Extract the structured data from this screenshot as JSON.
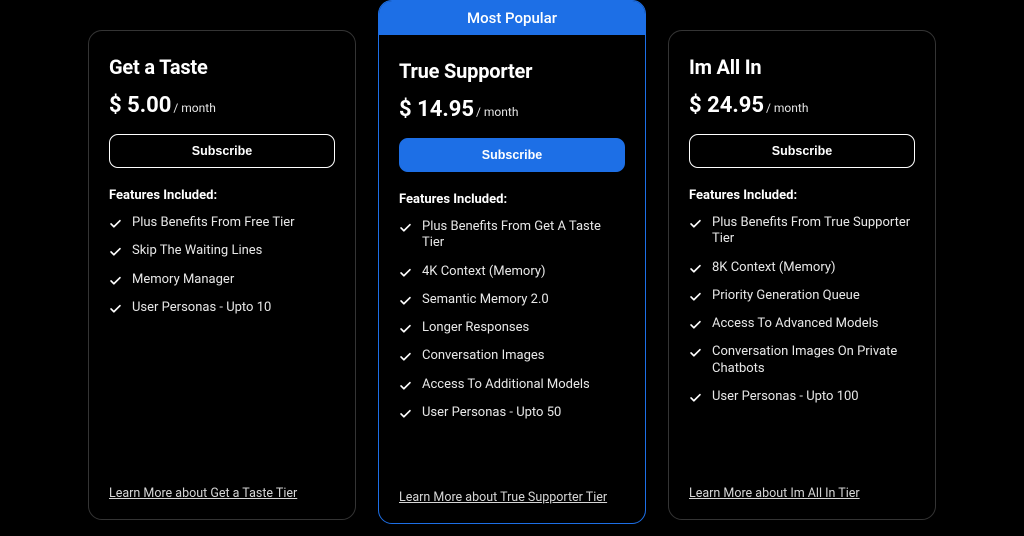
{
  "colors": {
    "background": "#000000",
    "card_border": "#343434",
    "accent": "#1d6fe6",
    "text": "#ffffff",
    "text_muted": "#d6d6d6"
  },
  "shared": {
    "badge_label": "Most Popular",
    "subscribe_label": "Subscribe",
    "features_heading": "Features Included:"
  },
  "tiers": {
    "t1": {
      "title": "Get a Taste",
      "price": "$ 5.00",
      "period": "/ month",
      "features": [
        "Plus Benefits From Free Tier",
        "Skip The Waiting Lines",
        "Memory Manager",
        "User Personas - Upto 10"
      ],
      "learn_more": "Learn More about Get a Taste Tier"
    },
    "t2": {
      "title": "True Supporter",
      "price": "$ 14.95",
      "period": "/ month",
      "features": [
        "Plus Benefits From Get A Taste Tier",
        "4K Context (Memory)",
        "Semantic Memory 2.0",
        "Longer Responses",
        "Conversation Images",
        "Access To Additional Models",
        "User Personas - Upto 50"
      ],
      "learn_more": "Learn More about True Supporter Tier"
    },
    "t3": {
      "title": "Im All In",
      "price": "$ 24.95",
      "period": "/ month",
      "features": [
        "Plus Benefits From True Supporter Tier",
        "8K Context (Memory)",
        "Priority Generation Queue",
        "Access To Advanced Models",
        "Conversation Images On Private Chatbots",
        "User Personas - Upto 100"
      ],
      "learn_more": "Learn More about Im All In Tier"
    }
  }
}
